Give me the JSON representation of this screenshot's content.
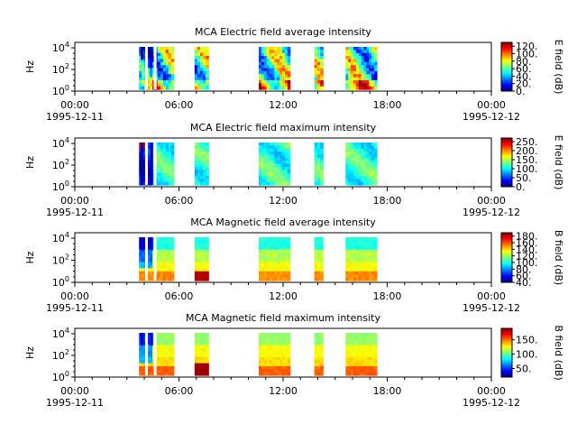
{
  "chart_data": [
    {
      "type": "heatmap",
      "title": "MCA  Electric field average intensity",
      "ylabel": "Hz",
      "y_ticks": [
        "10^0",
        "10^2",
        "10^4"
      ],
      "x_ticks": [
        "00:00",
        "06:00",
        "12:00",
        "18:00",
        "00:00"
      ],
      "x_dates": [
        "1995-12-11",
        "1995-12-12"
      ],
      "colorbar": {
        "label": "E field (dB)",
        "ticks": [
          "0.",
          "20.",
          "40.",
          "60.",
          "80.",
          "100.",
          "120."
        ],
        "range": [
          0,
          130
        ]
      },
      "style": "avg",
      "data_intervals_hours": [
        [
          3.7,
          5.7
        ],
        [
          6.9,
          7.7
        ],
        [
          10.6,
          12.4
        ],
        [
          13.8,
          14.3
        ],
        [
          15.6,
          17.4
        ]
      ]
    },
    {
      "type": "heatmap",
      "title": "MCA  Electric field maximum intensity",
      "ylabel": "Hz",
      "y_ticks": [
        "10^0",
        "10^2",
        "10^4"
      ],
      "x_ticks": [
        "00:00",
        "06:00",
        "12:00",
        "18:00",
        "00:00"
      ],
      "x_dates": [
        "1995-12-11",
        "1995-12-12"
      ],
      "colorbar": {
        "label": "E field (dB)",
        "ticks": [
          "0.",
          "50.",
          "100.",
          "150.",
          "200.",
          "250."
        ],
        "range": [
          0,
          270
        ]
      },
      "style": "emax",
      "data_intervals_hours": [
        [
          3.7,
          5.7
        ],
        [
          6.9,
          7.7
        ],
        [
          10.6,
          12.4
        ],
        [
          13.8,
          14.3
        ],
        [
          15.6,
          17.4
        ]
      ]
    },
    {
      "type": "heatmap",
      "title": "MCA  Magnetic field average intensity",
      "ylabel": "Hz",
      "y_ticks": [
        "10^0",
        "10^2",
        "10^4"
      ],
      "x_ticks": [
        "00:00",
        "06:00",
        "12:00",
        "18:00",
        "00:00"
      ],
      "x_dates": [
        "1995-12-11",
        "1995-12-12"
      ],
      "colorbar": {
        "label": "B field (dB)",
        "ticks": [
          "40.",
          "60.",
          "80.",
          "100.",
          "120.",
          "140.",
          "160.",
          "180."
        ],
        "range": [
          40,
          190
        ]
      },
      "style": "bavg",
      "data_intervals_hours": [
        [
          3.7,
          5.7
        ],
        [
          6.9,
          7.7
        ],
        [
          10.6,
          12.4
        ],
        [
          13.8,
          14.3
        ],
        [
          15.6,
          17.4
        ]
      ]
    },
    {
      "type": "heatmap",
      "title": "MCA  Magnetic field maximum intensity",
      "ylabel": "Hz",
      "y_ticks": [
        "10^0",
        "10^2",
        "10^4"
      ],
      "x_ticks": [
        "00:00",
        "06:00",
        "12:00",
        "18:00",
        "00:00"
      ],
      "x_dates": [
        "1995-12-11",
        "1995-12-12"
      ],
      "colorbar": {
        "label": "B field (dB)",
        "ticks": [
          "50.",
          "100.",
          "150."
        ],
        "range": [
          20,
          190
        ]
      },
      "style": "bmax",
      "data_intervals_hours": [
        [
          3.7,
          5.7
        ],
        [
          6.9,
          7.7
        ],
        [
          10.6,
          12.4
        ],
        [
          13.8,
          14.3
        ],
        [
          15.6,
          17.4
        ]
      ]
    }
  ]
}
